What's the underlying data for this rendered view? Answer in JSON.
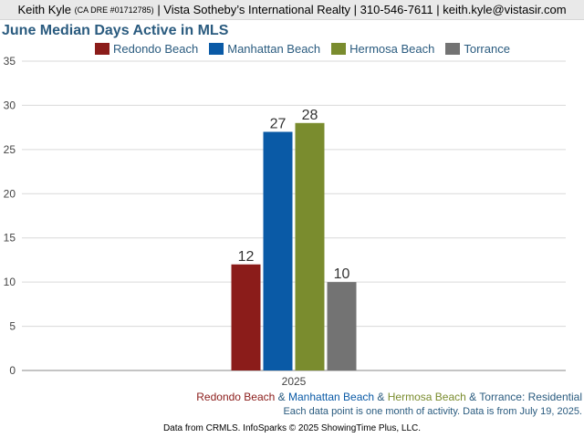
{
  "header": {
    "name": "Keith Kyle",
    "dre": "(CA DRE #01712785)",
    "rest": "| Vista Sotheby’s International Realty | 310-546-7611 | keith.kyle@vistasir.com"
  },
  "colors": {
    "redondo": "#8b1c1a",
    "manhattan": "#0a5aa6",
    "hermosa": "#7a8c2e",
    "torrance": "#737373",
    "title": "#2a5b7f"
  },
  "chart_data": {
    "type": "bar",
    "title": "June Median Days Active in MLS",
    "categories": [
      "2025"
    ],
    "series": [
      {
        "name": "Redondo Beach",
        "values": [
          12
        ],
        "color": "#8b1c1a"
      },
      {
        "name": "Manhattan Beach",
        "values": [
          27
        ],
        "color": "#0a5aa6"
      },
      {
        "name": "Hermosa Beach",
        "values": [
          28
        ],
        "color": "#7a8c2e"
      },
      {
        "name": "Torrance",
        "values": [
          10
        ],
        "color": "#737373"
      }
    ],
    "ylim": [
      0,
      35
    ],
    "yticks": [
      "0",
      "5",
      "10",
      "15",
      "20",
      "25",
      "30",
      "35"
    ],
    "grid": true,
    "legend": "top"
  },
  "footer": {
    "redondo": "Redondo Beach",
    "amp1": " & ",
    "manhattan": "Manhattan Beach",
    "amp2": " & ",
    "hermosa": "Hermosa Beach",
    "amp3": " & ",
    "torrance": "Torrance",
    "colon": ": ",
    "residential": "Residential",
    "note": "Each data point is one month of activity. Data is from July 19, 2025.",
    "source": "Data from CRMLS. InfoSparks © 2025 ShowingTime Plus, LLC."
  }
}
